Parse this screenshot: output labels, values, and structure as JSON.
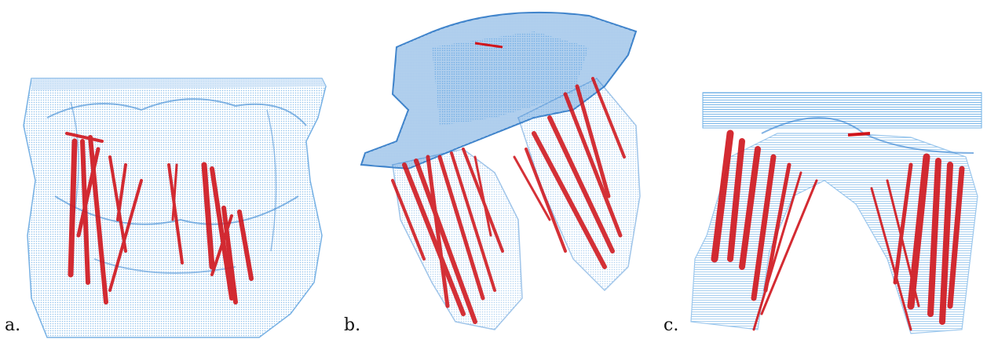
{
  "panels": [
    {
      "label": "a.",
      "image": "point-cloud-view-front"
    },
    {
      "label": "b.",
      "image": "point-cloud-view-oblique"
    },
    {
      "label": "c.",
      "image": "point-cloud-view-side"
    }
  ],
  "colors": {
    "shell_light": "#9cc8ee",
    "shell_dark": "#2f7fd0",
    "fibers": "#d0151c"
  }
}
